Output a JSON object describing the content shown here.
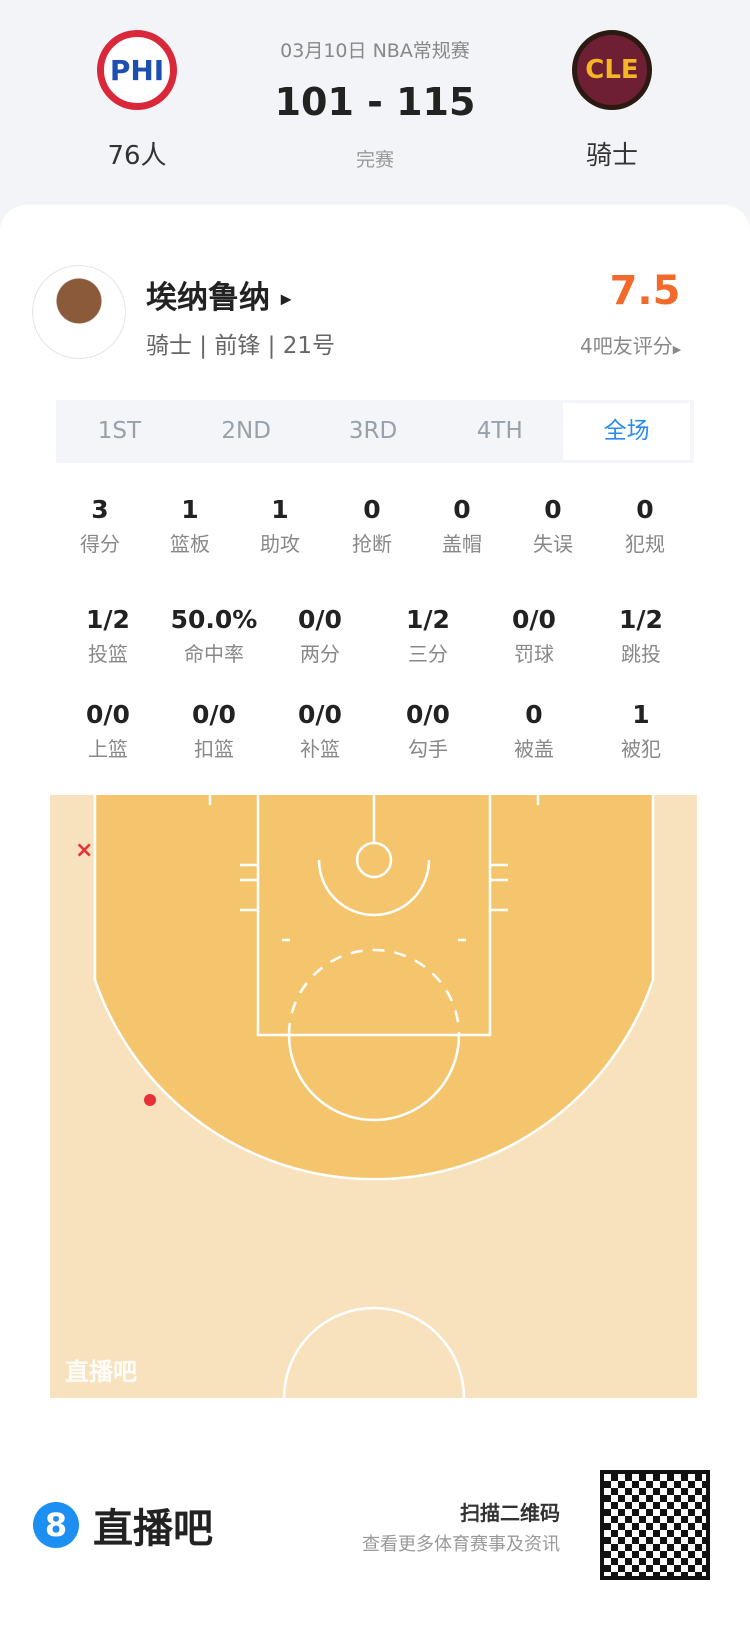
{
  "header": {
    "date_league": "03月10日 NBA常规赛",
    "score": "101 - 115",
    "status": "完赛",
    "home": {
      "abbr": "PHI",
      "name": "76人",
      "color": "#1d4fb0"
    },
    "away": {
      "abbr": "CLE",
      "name": "骑士",
      "color": "#7a2136"
    }
  },
  "player": {
    "name": "埃纳鲁纳",
    "info": "骑士 | 前锋 | 21号",
    "rating": "7.5",
    "rating_label": "4吧友评分",
    "rating_color": "#f26a2b"
  },
  "tabs": [
    {
      "label": "1ST"
    },
    {
      "label": "2ND"
    },
    {
      "label": "3RD"
    },
    {
      "label": "4TH"
    },
    {
      "label": "全场",
      "active": true
    }
  ],
  "stats_row1": [
    {
      "v": "3",
      "l": "得分"
    },
    {
      "v": "1",
      "l": "篮板"
    },
    {
      "v": "1",
      "l": "助攻"
    },
    {
      "v": "0",
      "l": "抢断"
    },
    {
      "v": "0",
      "l": "盖帽"
    },
    {
      "v": "0",
      "l": "失误"
    },
    {
      "v": "0",
      "l": "犯规"
    }
  ],
  "stats_row2": [
    {
      "v": "1/2",
      "l": "投篮"
    },
    {
      "v": "50.0%",
      "l": "命中率"
    },
    {
      "v": "0/0",
      "l": "两分"
    },
    {
      "v": "1/2",
      "l": "三分"
    },
    {
      "v": "0/0",
      "l": "罚球"
    },
    {
      "v": "1/2",
      "l": "跳投"
    }
  ],
  "stats_row3": [
    {
      "v": "0/0",
      "l": "上篮"
    },
    {
      "v": "0/0",
      "l": "扣篮"
    },
    {
      "v": "0/0",
      "l": "补篮"
    },
    {
      "v": "0/0",
      "l": "勾手"
    },
    {
      "v": "0",
      "l": "被盖"
    },
    {
      "v": "1",
      "l": "被犯"
    }
  ],
  "court": {
    "watermark": "直播吧",
    "shots": [
      {
        "type": "miss",
        "marker": "×"
      },
      {
        "type": "make"
      }
    ],
    "shot_color": "#e8303a"
  },
  "footer": {
    "brand": "直播吧",
    "brand_icon": "8",
    "scan": "扫描二维码",
    "sub": "查看更多体育赛事及资讯"
  }
}
